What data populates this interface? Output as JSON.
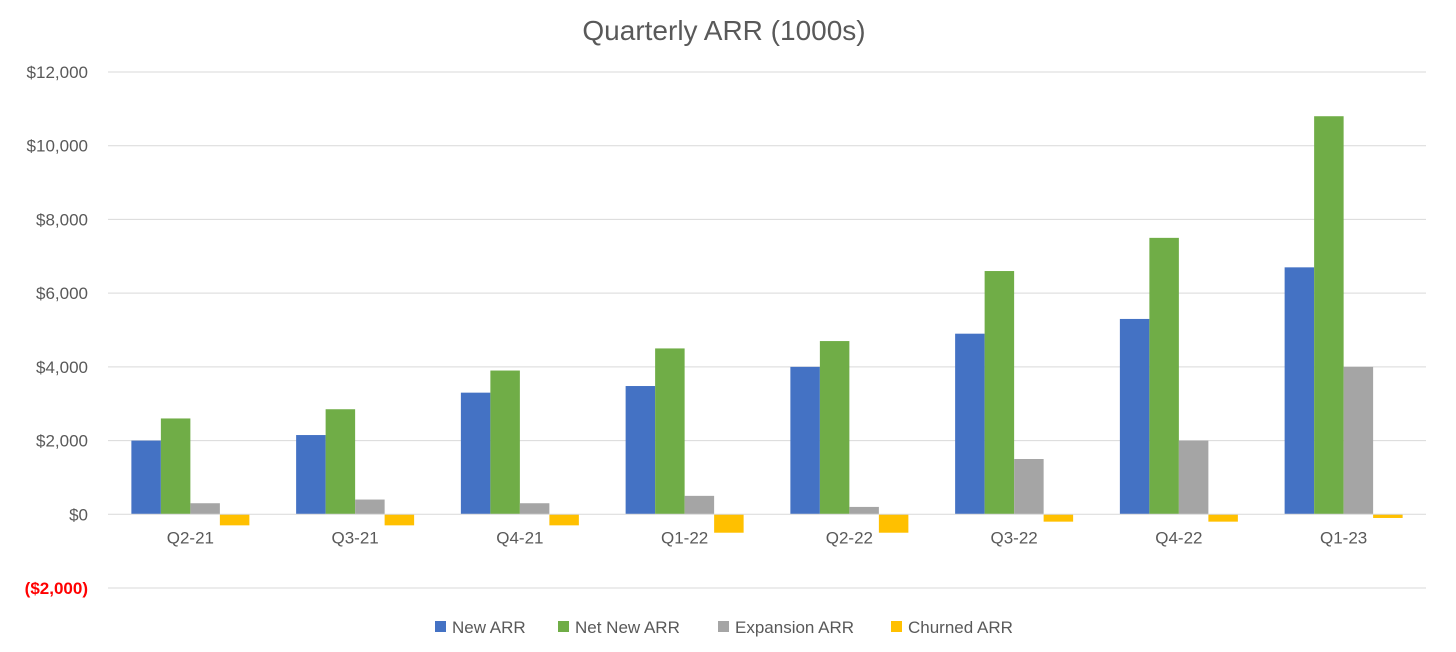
{
  "chart_data": {
    "type": "bar",
    "title": "Quarterly ARR (1000s)",
    "xlabel": "",
    "ylabel": "",
    "ylim": [
      -2000,
      12000
    ],
    "yticks": [
      {
        "value": 12000,
        "label": "$12,000"
      },
      {
        "value": 10000,
        "label": "$10,000"
      },
      {
        "value": 8000,
        "label": "$8,000"
      },
      {
        "value": 6000,
        "label": "$6,000"
      },
      {
        "value": 4000,
        "label": "$4,000"
      },
      {
        "value": 2000,
        "label": "$2,000"
      },
      {
        "value": 0,
        "label": "$0"
      },
      {
        "value": -2000,
        "label": "($2,000)"
      }
    ],
    "grid": true,
    "legend": "bottom",
    "categories": [
      "Q2-21",
      "Q3-21",
      "Q4-21",
      "Q1-22",
      "Q2-22",
      "Q3-22",
      "Q4-22",
      "Q1-23"
    ],
    "series": [
      {
        "name": "New ARR",
        "color": "#4472c4",
        "values": [
          2000,
          2150,
          3300,
          3480,
          4000,
          4900,
          5300,
          6700
        ]
      },
      {
        "name": "Net New ARR",
        "color": "#70ad47",
        "values": [
          2600,
          2850,
          3900,
          4500,
          4700,
          6600,
          7500,
          10800
        ]
      },
      {
        "name": "Expansion ARR",
        "color": "#a5a5a5",
        "values": [
          300,
          400,
          300,
          500,
          200,
          1500,
          2000,
          4000
        ]
      },
      {
        "name": "Churned ARR",
        "color": "#ffc000",
        "values": [
          -300,
          -300,
          -300,
          -500,
          -500,
          -200,
          -200,
          -100
        ]
      }
    ]
  }
}
